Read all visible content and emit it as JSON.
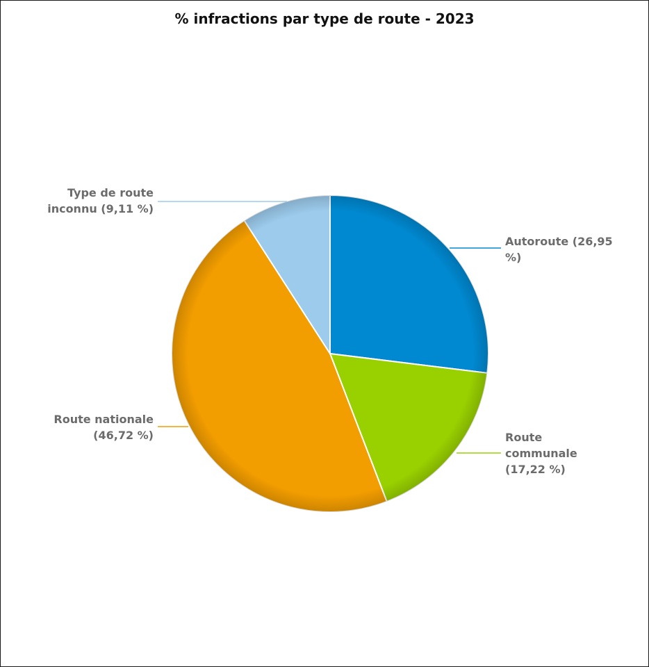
{
  "chart_data": {
    "type": "pie",
    "title": "% infractions par type de route - 2023",
    "slices": [
      {
        "label": "Autoroute",
        "value": 26.95,
        "display": "Autoroute (26,95 %)",
        "color": "#0089d1"
      },
      {
        "label": "Route communale",
        "value": 17.22,
        "display": "Route communale (17,22 %)",
        "color": "#99d100"
      },
      {
        "label": "Route nationale",
        "value": 46.72,
        "display": "Route nationale (46,72 %)",
        "color": "#f29d00"
      },
      {
        "label": "Type de route inconnu",
        "value": 9.11,
        "display": "Type de route inconnu (9,11 %)",
        "color": "#9ccbec"
      }
    ],
    "legend": "none",
    "data_labels": "outside with connector lines"
  }
}
